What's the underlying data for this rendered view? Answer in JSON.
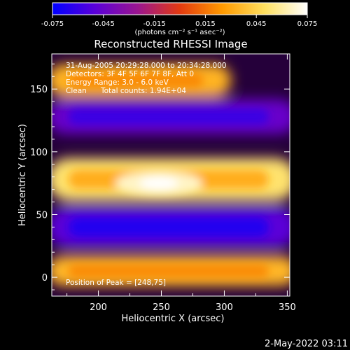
{
  "chart_data": {
    "type": "heatmap",
    "title": "Reconstructed RHESSI Image",
    "xlabel": "Heliocentric X (arcsec)",
    "ylabel": "Heliocentric Y (arcsec)",
    "xlim": [
      163,
      352
    ],
    "ylim": [
      -15,
      178
    ],
    "xticks": [
      200,
      250,
      300,
      350
    ],
    "yticks": [
      0,
      50,
      100,
      150
    ],
    "colorbar": {
      "min": -0.075,
      "max": 0.075,
      "ticks": [
        "-0.075",
        "-0.045",
        "-0.015",
        "0.015",
        "0.045",
        "0.075"
      ],
      "unit_label": "(photons cm⁻² s⁻¹ asec⁻²)",
      "colors": [
        "#0000ff",
        "#5a00d8",
        "#9a1590",
        "#e33a10",
        "#ff9a00",
        "#ffe060",
        "#ffffff"
      ]
    },
    "annotations": [
      "31-Aug-2005 20:29:28.000 to 20:34:28.000",
      "Detectors: 3F 4F 5F 6F 7F 8F, Att 0",
      "Energy Range: 3.0 - 6.0 keV",
      "Clean",
      "Total counts: 1.94E+04"
    ],
    "peak_label": "Position of Peak = [248,75]",
    "peak": [
      248,
      75
    ],
    "bands": [
      {
        "y": 157,
        "x_from": 165,
        "x_to": 300,
        "width": 26,
        "value": 0.034
      },
      {
        "y": 128,
        "x_from": 165,
        "x_to": 352,
        "width": 28,
        "value": -0.045
      },
      {
        "y": 78,
        "x_from": 165,
        "x_to": 352,
        "width": 34,
        "value": 0.052
      },
      {
        "y": 40,
        "x_from": 165,
        "x_to": 352,
        "width": 34,
        "value": -0.05
      },
      {
        "y": 5,
        "x_from": 165,
        "x_to": 352,
        "width": 24,
        "value": 0.035
      }
    ]
  },
  "timestamp": "2-May-2022 03:11"
}
